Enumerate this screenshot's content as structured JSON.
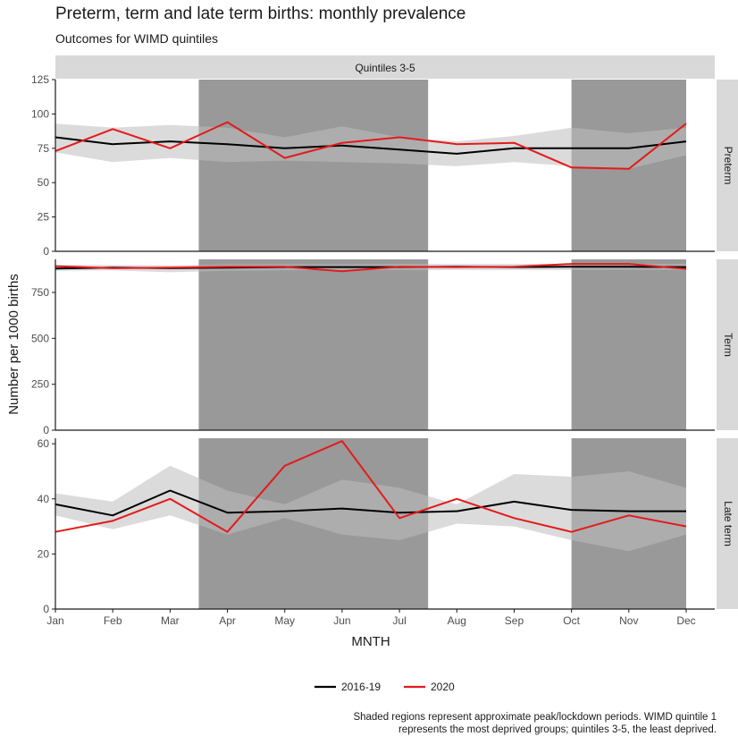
{
  "title": "Preterm, term and late term births: monthly prevalence",
  "subtitle": "Outcomes for WIMD quintiles",
  "caption": {
    "line1": "Shaded regions represent approximate peak/lockdown periods. WIMD quintile 1",
    "line2": "represents the most deprived groups; quintiles 3-5, the least deprived."
  },
  "chart_data": {
    "type": "line",
    "facet_column_label": "Quintiles 3-5",
    "xlabel": "MNTH",
    "ylabel": "Number per 1000 births",
    "categories": [
      "Jan",
      "Feb",
      "Mar",
      "Apr",
      "May",
      "Jun",
      "Jul",
      "Aug",
      "Sep",
      "Oct",
      "Nov",
      "Dec"
    ],
    "shaded_periods": [
      {
        "from": 3.5,
        "to": 7.5
      },
      {
        "from": 10,
        "to": 12
      }
    ],
    "panels": [
      {
        "name": "Preterm",
        "ylim": [
          0,
          125
        ],
        "yticks": [
          0,
          25,
          50,
          75,
          100,
          125
        ],
        "series": [
          {
            "name": "2016-19",
            "color": "#000000",
            "values": [
              83,
              78,
              80,
              78,
              75,
              77,
              74,
              71,
              75,
              75,
              75,
              80
            ]
          },
          {
            "name": "2020",
            "color": "#e41a1c",
            "values": [
              73,
              89,
              75,
              94,
              68,
              79,
              83,
              78,
              79,
              61,
              60,
              93
            ]
          }
        ],
        "band": {
          "lower": [
            72,
            65,
            68,
            65,
            66,
            65,
            64,
            62,
            65,
            62,
            60,
            70
          ],
          "upper": [
            93,
            90,
            92,
            90,
            83,
            91,
            83,
            80,
            84,
            90,
            86,
            90
          ]
        }
      },
      {
        "name": "Term",
        "ylim": [
          0,
          930
        ],
        "yticks": [
          0,
          250,
          500,
          750
        ],
        "series": [
          {
            "name": "2016-19",
            "color": "#000000",
            "values": [
              880,
              885,
              882,
              885,
              888,
              888,
              888,
              890,
              888,
              890,
              890,
              888
            ]
          },
          {
            "name": "2020",
            "color": "#e41a1c",
            "values": [
              893,
              882,
              885,
              890,
              890,
              865,
              890,
              888,
              890,
              905,
              905,
              878
            ]
          }
        ],
        "band": {
          "lower": [
            868,
            870,
            860,
            868,
            870,
            872,
            872,
            872,
            872,
            872,
            873,
            872
          ],
          "upper": [
            900,
            900,
            898,
            902,
            903,
            903,
            905,
            905,
            905,
            905,
            905,
            905
          ]
        }
      },
      {
        "name": "Late term",
        "ylim": [
          0,
          62
        ],
        "yticks": [
          0,
          20,
          40,
          60
        ],
        "series": [
          {
            "name": "2016-19",
            "color": "#000000",
            "values": [
              38,
              34,
              43,
              35,
              35.5,
              36.5,
              35,
              35.5,
              39,
              36,
              35.5,
              35.5
            ]
          },
          {
            "name": "2020",
            "color": "#e41a1c",
            "values": [
              28,
              32,
              40,
              28,
              52,
              61,
              33,
              40,
              33,
              28,
              34,
              30
            ]
          }
        ],
        "band": {
          "lower": [
            34,
            29,
            34,
            27,
            33,
            27,
            25,
            31,
            30,
            25,
            21,
            27
          ],
          "upper": [
            42,
            39,
            52,
            43,
            38,
            47,
            44,
            38,
            49,
            48,
            50,
            44
          ]
        }
      }
    ],
    "legend": {
      "placement": "bottom",
      "entries": [
        {
          "label": "2016-19",
          "color": "#000000"
        },
        {
          "label": "2020",
          "color": "#e41a1c"
        }
      ]
    }
  }
}
